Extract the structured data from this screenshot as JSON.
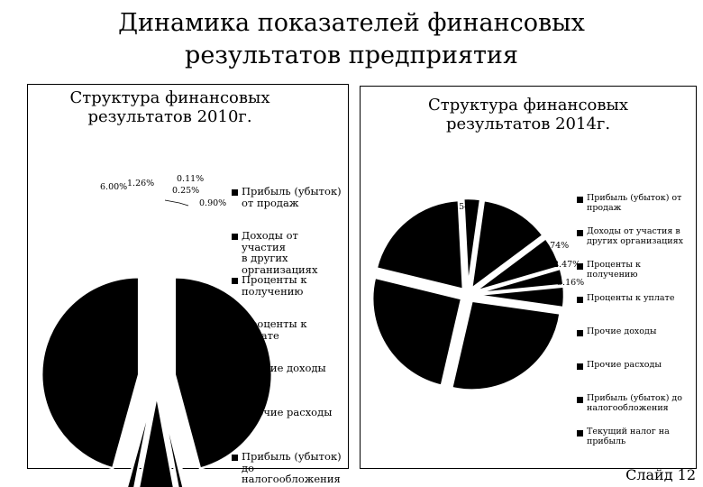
{
  "slide": {
    "title_line1": "Динамика показателей финансовых",
    "title_line2": "результатов предприятия",
    "footer": "Слайд 12"
  },
  "chart_data": [
    {
      "type": "pie",
      "title_line1": "Структура финансовых",
      "title_line2": "результатов 2010г.",
      "legend_placement": "right",
      "categories": [
        "Прибыль (убыток) от продаж",
        "Доходы от участия в других организациях",
        "Проценты к получению",
        "Проценты к уплате",
        "Прочие доходы",
        "Прочие расходы",
        "Прибыль (убыток) до налогообложения"
      ],
      "values": [
        45.8,
        0.11,
        0.25,
        0.9,
        6.0,
        1.26,
        45.68
      ],
      "labels": [
        "",
        "0.11%",
        "0.25%",
        "0.90%",
        "6.00%",
        "1.26%",
        ""
      ],
      "legend_lines": [
        [
          "Прибыль (убыток)",
          "от продаж"
        ],
        [
          "Доходы от участия",
          "в других",
          "организациях"
        ],
        [
          "Проценты к",
          "получению"
        ],
        [
          "Проценты к",
          "уплате"
        ],
        [
          "Прочие доходы"
        ],
        [
          "Прочие расходы"
        ],
        [
          "Прибыль (убыток)",
          "до",
          "налогообложения"
        ]
      ],
      "colors": [
        "#000000"
      ]
    },
    {
      "type": "pie",
      "title_line1": "Структура финансовых",
      "title_line2": "результатов 2014г.",
      "legend_placement": "right",
      "categories": [
        "Прибыль (убыток) от продаж",
        "Доходы от участия в других организациях",
        "Проценты к получению",
        "Проценты к уплате",
        "Прочие доходы",
        "Прочие расходы",
        "Прибыль (убыток) до налогообложения",
        "Текущий налог на прибыль"
      ],
      "values": [
        10.5,
        4.74,
        2.47,
        3.16,
        22.0,
        21.0,
        17.0,
        2.54
      ],
      "labels": [
        "",
        "4.74%",
        "2.47%",
        "3.16%",
        "",
        "",
        "",
        "2.54%"
      ],
      "legend_lines": [
        [
          "Прибыль (убыток) от",
          "продаж"
        ],
        [
          "Доходы от участия в",
          "других организациях"
        ],
        [
          "Проценты к",
          "получению"
        ],
        [
          "Проценты к уплате"
        ],
        [
          "Прочие доходы"
        ],
        [
          "Прочие расходы"
        ],
        [
          "Прибыль (убыток) до",
          "налогообложения"
        ],
        [
          "Текущий налог на",
          "прибыль"
        ]
      ],
      "colors": [
        "#000000"
      ]
    }
  ]
}
